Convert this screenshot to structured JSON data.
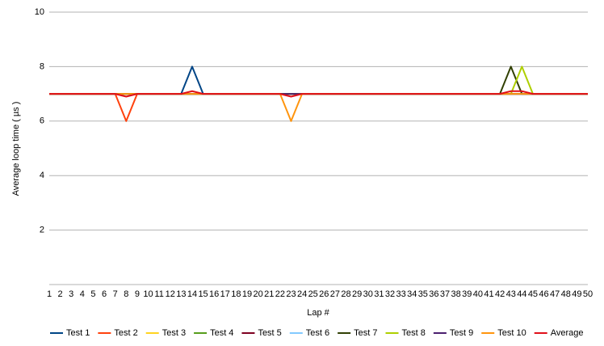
{
  "chart_data": {
    "type": "line",
    "x_label": "Lap #",
    "y_label": "Average loop time ( µs )",
    "x": [
      1,
      2,
      3,
      4,
      5,
      6,
      7,
      8,
      9,
      10,
      11,
      12,
      13,
      14,
      15,
      16,
      17,
      18,
      19,
      20,
      21,
      22,
      23,
      24,
      25,
      26,
      27,
      28,
      29,
      30,
      31,
      32,
      33,
      34,
      35,
      36,
      37,
      38,
      39,
      40,
      41,
      42,
      43,
      44,
      45,
      46,
      47,
      48,
      49,
      50
    ],
    "xlim": [
      1,
      50
    ],
    "xticks": [
      1,
      2,
      3,
      4,
      5,
      6,
      7,
      8,
      9,
      10,
      11,
      12,
      13,
      14,
      15,
      16,
      17,
      18,
      19,
      20,
      21,
      22,
      23,
      24,
      25,
      26,
      27,
      28,
      29,
      30,
      31,
      32,
      33,
      34,
      35,
      36,
      37,
      38,
      39,
      40,
      41,
      42,
      43,
      44,
      45,
      46,
      47,
      48,
      49,
      50
    ],
    "ylim": [
      0,
      10
    ],
    "yticks": [
      2,
      4,
      6,
      8,
      10
    ],
    "grid": true,
    "legend": "bottom",
    "series": [
      {
        "name": "Test 1",
        "color": "#004586",
        "values": [
          7,
          7,
          7,
          7,
          7,
          7,
          7,
          7,
          7,
          7,
          7,
          7,
          7,
          8,
          7,
          7,
          7,
          7,
          7,
          7,
          7,
          7,
          7,
          7,
          7,
          7,
          7,
          7,
          7,
          7,
          7,
          7,
          7,
          7,
          7,
          7,
          7,
          7,
          7,
          7,
          7,
          7,
          7,
          7,
          7,
          7,
          7,
          7,
          7,
          7
        ]
      },
      {
        "name": "Test 2",
        "color": "#ff420e",
        "values": [
          7,
          7,
          7,
          7,
          7,
          7,
          7,
          6,
          7,
          7,
          7,
          7,
          7,
          7,
          7,
          7,
          7,
          7,
          7,
          7,
          7,
          7,
          7,
          7,
          7,
          7,
          7,
          7,
          7,
          7,
          7,
          7,
          7,
          7,
          7,
          7,
          7,
          7,
          7,
          7,
          7,
          7,
          7,
          7,
          7,
          7,
          7,
          7,
          7,
          7
        ]
      },
      {
        "name": "Test 3",
        "color": "#ffd320",
        "values": [
          7,
          7,
          7,
          7,
          7,
          7,
          7,
          7,
          7,
          7,
          7,
          7,
          7,
          7,
          7,
          7,
          7,
          7,
          7,
          7,
          7,
          7,
          7,
          7,
          7,
          7,
          7,
          7,
          7,
          7,
          7,
          7,
          7,
          7,
          7,
          7,
          7,
          7,
          7,
          7,
          7,
          7,
          7,
          7,
          7,
          7,
          7,
          7,
          7,
          7
        ]
      },
      {
        "name": "Test 4",
        "color": "#579d1c",
        "values": [
          7,
          7,
          7,
          7,
          7,
          7,
          7,
          7,
          7,
          7,
          7,
          7,
          7,
          7,
          7,
          7,
          7,
          7,
          7,
          7,
          7,
          7,
          7,
          7,
          7,
          7,
          7,
          7,
          7,
          7,
          7,
          7,
          7,
          7,
          7,
          7,
          7,
          7,
          7,
          7,
          7,
          7,
          7,
          7,
          7,
          7,
          7,
          7,
          7,
          7
        ]
      },
      {
        "name": "Test 5",
        "color": "#7e0021",
        "values": [
          7,
          7,
          7,
          7,
          7,
          7,
          7,
          7,
          7,
          7,
          7,
          7,
          7,
          7,
          7,
          7,
          7,
          7,
          7,
          7,
          7,
          7,
          7,
          7,
          7,
          7,
          7,
          7,
          7,
          7,
          7,
          7,
          7,
          7,
          7,
          7,
          7,
          7,
          7,
          7,
          7,
          7,
          7,
          7,
          7,
          7,
          7,
          7,
          7,
          7
        ]
      },
      {
        "name": "Test 6",
        "color": "#83caff",
        "values": [
          7,
          7,
          7,
          7,
          7,
          7,
          7,
          7,
          7,
          7,
          7,
          7,
          7,
          7,
          7,
          7,
          7,
          7,
          7,
          7,
          7,
          7,
          7,
          7,
          7,
          7,
          7,
          7,
          7,
          7,
          7,
          7,
          7,
          7,
          7,
          7,
          7,
          7,
          7,
          7,
          7,
          7,
          7,
          7,
          7,
          7,
          7,
          7,
          7,
          7
        ]
      },
      {
        "name": "Test 7",
        "color": "#314004",
        "values": [
          7,
          7,
          7,
          7,
          7,
          7,
          7,
          7,
          7,
          7,
          7,
          7,
          7,
          7,
          7,
          7,
          7,
          7,
          7,
          7,
          7,
          7,
          7,
          7,
          7,
          7,
          7,
          7,
          7,
          7,
          7,
          7,
          7,
          7,
          7,
          7,
          7,
          7,
          7,
          7,
          7,
          7,
          8,
          7,
          7,
          7,
          7,
          7,
          7,
          7
        ]
      },
      {
        "name": "Test 8",
        "color": "#aecf00",
        "values": [
          7,
          7,
          7,
          7,
          7,
          7,
          7,
          7,
          7,
          7,
          7,
          7,
          7,
          7,
          7,
          7,
          7,
          7,
          7,
          7,
          7,
          7,
          7,
          7,
          7,
          7,
          7,
          7,
          7,
          7,
          7,
          7,
          7,
          7,
          7,
          7,
          7,
          7,
          7,
          7,
          7,
          7,
          7,
          8,
          7,
          7,
          7,
          7,
          7,
          7
        ]
      },
      {
        "name": "Test 9",
        "color": "#4b1f6f",
        "values": [
          7,
          7,
          7,
          7,
          7,
          7,
          7,
          7,
          7,
          7,
          7,
          7,
          7,
          7,
          7,
          7,
          7,
          7,
          7,
          7,
          7,
          7,
          7,
          7,
          7,
          7,
          7,
          7,
          7,
          7,
          7,
          7,
          7,
          7,
          7,
          7,
          7,
          7,
          7,
          7,
          7,
          7,
          7,
          7,
          7,
          7,
          7,
          7,
          7,
          7
        ]
      },
      {
        "name": "Test 10",
        "color": "#ff950e",
        "values": [
          7,
          7,
          7,
          7,
          7,
          7,
          7,
          7,
          7,
          7,
          7,
          7,
          7,
          7,
          7,
          7,
          7,
          7,
          7,
          7,
          7,
          7,
          6,
          7,
          7,
          7,
          7,
          7,
          7,
          7,
          7,
          7,
          7,
          7,
          7,
          7,
          7,
          7,
          7,
          7,
          7,
          7,
          7,
          7,
          7,
          7,
          7,
          7,
          7,
          7
        ]
      },
      {
        "name": "Average",
        "color": "#e0101a",
        "values": [
          7,
          7,
          7,
          7,
          7,
          7,
          7,
          6.9,
          7,
          7,
          7,
          7,
          7,
          7.1,
          7,
          7,
          7,
          7,
          7,
          7,
          7,
          7,
          6.9,
          7,
          7,
          7,
          7,
          7,
          7,
          7,
          7,
          7,
          7,
          7,
          7,
          7,
          7,
          7,
          7,
          7,
          7,
          7,
          7.1,
          7.1,
          7,
          7,
          7,
          7,
          7,
          7
        ]
      }
    ]
  }
}
